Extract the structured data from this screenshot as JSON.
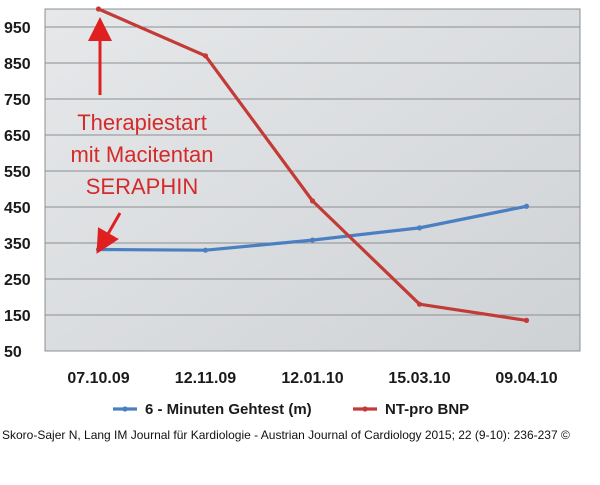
{
  "chart_data": {
    "type": "line",
    "categories": [
      "07.10.09",
      "12.11.09",
      "12.01.10",
      "15.03.10",
      "09.04.10"
    ],
    "series": [
      {
        "name": "6 - Minuten Gehtest (m)",
        "values": [
          332,
          330,
          358,
          392,
          452
        ],
        "color": "#4a7fc1"
      },
      {
        "name": "NT-pro BNP",
        "values": [
          1000,
          870,
          467,
          180,
          135
        ],
        "color": "#c23b36"
      }
    ],
    "yticks": [
      50,
      150,
      250,
      350,
      450,
      550,
      650,
      750,
      850,
      950
    ],
    "ylim": [
      50,
      1000
    ],
    "grid": true,
    "legend_position": "bottom",
    "annotation": {
      "lines": [
        "Therapiestart",
        "mit Macitentan",
        "SERAPHIN"
      ],
      "color": "#d42a2a"
    }
  },
  "citation": "Skoro-Sajer N, Lang IM Journal für Kardiologie - Austrian Journal of Cardiology 2015; 22 (9-10): 236-237 ©"
}
